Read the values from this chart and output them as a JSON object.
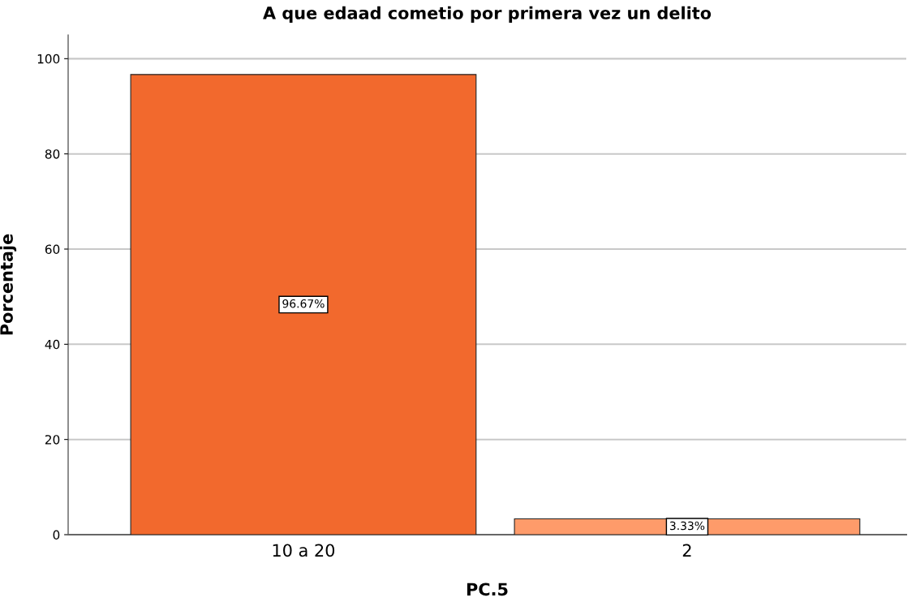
{
  "chart_data": {
    "type": "bar",
    "title": "A que edaad cometio por primera vez un delito",
    "xlabel": "PC.5",
    "ylabel": "Porcentaje",
    "categories": [
      "10 a 20",
      "2"
    ],
    "values": [
      96.67,
      3.33
    ],
    "colors": [
      "#f2692d",
      "#fe9b6a"
    ],
    "value_labels": [
      "96.67%",
      "3.33%"
    ],
    "ylim": [
      0,
      105
    ],
    "yticks": [
      0,
      20,
      40,
      60,
      80,
      100
    ],
    "grid": "y"
  }
}
